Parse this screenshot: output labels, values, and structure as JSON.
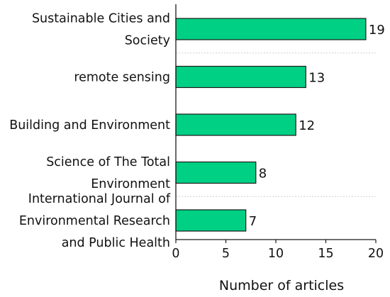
{
  "chart_data": {
    "type": "bar",
    "orientation": "horizontal",
    "categories": [
      [
        "Sustainable Cities and",
        "Society"
      ],
      [
        "remote sensing"
      ],
      [
        "Building and Environment"
      ],
      [
        "Science of The Total",
        "Environment"
      ],
      [
        "International Journal of",
        "Environmental Research",
        "and Public Health"
      ]
    ],
    "values": [
      19,
      13,
      12,
      8,
      7
    ],
    "xlabel": "Number of articles",
    "ylabel": "",
    "xlim": [
      0,
      20
    ],
    "xticks": [
      0,
      5,
      10,
      15,
      20
    ],
    "grid": false,
    "data_labels": true,
    "bar_color": "#00d084",
    "bar_edge_color": "#1a1a1a",
    "separator_color": "#d0d0d0"
  }
}
